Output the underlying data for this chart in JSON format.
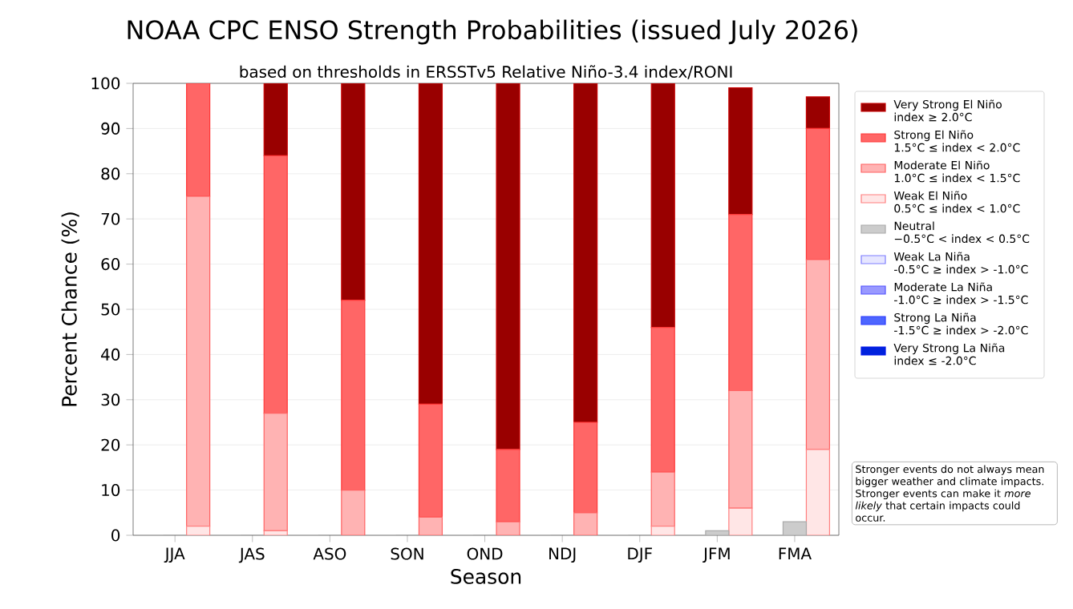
{
  "chart_data": [
    {
      "type": "bar",
      "title": "NOAA CPC ENSO Strength Probabilities (issued July 2026)",
      "subtitle": "based on thresholds in ERSSTv5 Relative Niño-3.4 index/RONI",
      "xlabel": "Season",
      "ylabel": "Percent Chance (%)",
      "categories": [
        "JJA",
        "JAS",
        "ASO",
        "SON",
        "OND",
        "NDJ",
        "DJF",
        "JFM",
        "FMA"
      ],
      "stacked": true,
      "series": [
        {
          "name": "Weak El Niño\n0.5°C ≤ index < 1.0°C",
          "color": "#ffe6e6",
          "values": [
            2,
            1,
            0,
            0,
            0,
            0,
            2,
            6,
            19
          ]
        },
        {
          "name": "Moderate El Niño\n1.0°C ≤ index < 1.5°C",
          "color": "#ffb3b3",
          "values": [
            73,
            26,
            10,
            4,
            3,
            5,
            12,
            26,
            42
          ]
        },
        {
          "name": "Strong El Niño\n1.5°C ≤ index < 2.0°C",
          "color": "#ff6666",
          "values": [
            25,
            57,
            42,
            25,
            16,
            20,
            32,
            39,
            29
          ]
        },
        {
          "name": "Very Strong El Niño\nindex ≥ 2.0°C",
          "color": "#990000",
          "values": [
            0,
            16,
            48,
            71,
            81,
            75,
            54,
            28,
            7
          ]
        }
      ],
      "ylim": [
        0,
        100
      ],
      "yticks": [
        0,
        10,
        20,
        30,
        40,
        50,
        60,
        70,
        80,
        90,
        100
      ],
      "grid": "y",
      "legend": "right",
      "annotations": [
        "Stronger events do not always mean bigger weather and climate impacts. Stronger events can make it *more likely* that certain impacts could occur."
      ]
    },
    {
      "type": "bar",
      "categories": [
        null,
        null,
        null,
        null,
        null,
        null,
        null,
        null,
        null
      ],
      "series": [
        {
          "name": "Neutral\n−0.5°C < index < 0.5°C",
          "color": "#cccccc",
          "values": [
            0,
            0,
            0,
            0,
            0,
            0,
            0,
            1,
            3
          ]
        }
      ],
      "ylim": [
        0,
        100
      ],
      "tick_labels": false,
      "legend": "right"
    },
    {
      "type": "bar",
      "categories": [
        null,
        null,
        null,
        null,
        null,
        null,
        null,
        null,
        null
      ],
      "stacked": true,
      "series": [
        {
          "name": "Weak La Niña\n-0.5°C ≥ index > -1.0°C",
          "color": "#e6e6ff",
          "values": [
            0,
            0,
            0,
            0,
            0,
            0,
            0,
            0,
            0
          ]
        },
        {
          "name": "Moderate La Niña\n-1.0°C ≥ index > -1.5°C",
          "color": "#9999ff",
          "values": [
            0,
            0,
            0,
            0,
            0,
            0,
            0,
            0,
            0
          ]
        },
        {
          "name": "Strong La Niña\n-1.5°C ≥ index > -2.0°C",
          "color": "#4d66ff",
          "values": [
            0,
            0,
            0,
            0,
            0,
            0,
            0,
            0,
            0
          ]
        },
        {
          "name": "Very Strong La Niña\nindex ≤ -2.0°C",
          "color": "#0022dd",
          "values": [
            0,
            0,
            0,
            0,
            0,
            0,
            0,
            0,
            0
          ]
        }
      ],
      "ylim": [
        0,
        100
      ],
      "tick_labels": false,
      "legend": "right"
    }
  ]
}
